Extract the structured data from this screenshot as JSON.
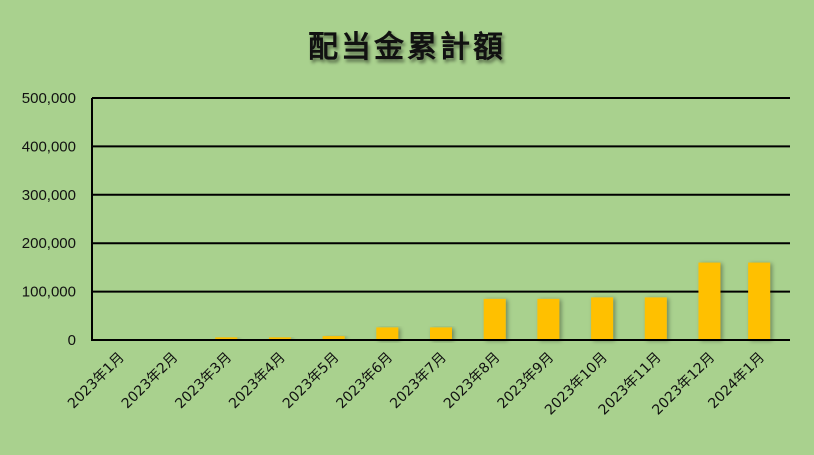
{
  "chart_data": {
    "type": "bar",
    "title": "配当金累計額",
    "xlabel": "",
    "ylabel": "",
    "categories": [
      "2023年1月",
      "2023年2月",
      "2023年3月",
      "2023年4月",
      "2023年5月",
      "2023年6月",
      "2023年7月",
      "2023年8月",
      "2023年9月",
      "2023年10月",
      "2023年11月",
      "2023年12月",
      "2024年1月"
    ],
    "values": [
      0,
      0,
      5500,
      5500,
      8000,
      26000,
      26000,
      85000,
      85000,
      88000,
      88000,
      160000,
      160000
    ],
    "ylim": [
      0,
      500000
    ],
    "yticks": [
      "0",
      "100,000",
      "200,000",
      "300,000",
      "400,000",
      "500,000"
    ],
    "ytick_values": [
      0,
      100000,
      200000,
      300000,
      400000,
      500000
    ],
    "grid": true,
    "legend": "none",
    "colors": {
      "bar": "#FFC000",
      "background": "#A9D18E",
      "grid": "#000000"
    }
  }
}
